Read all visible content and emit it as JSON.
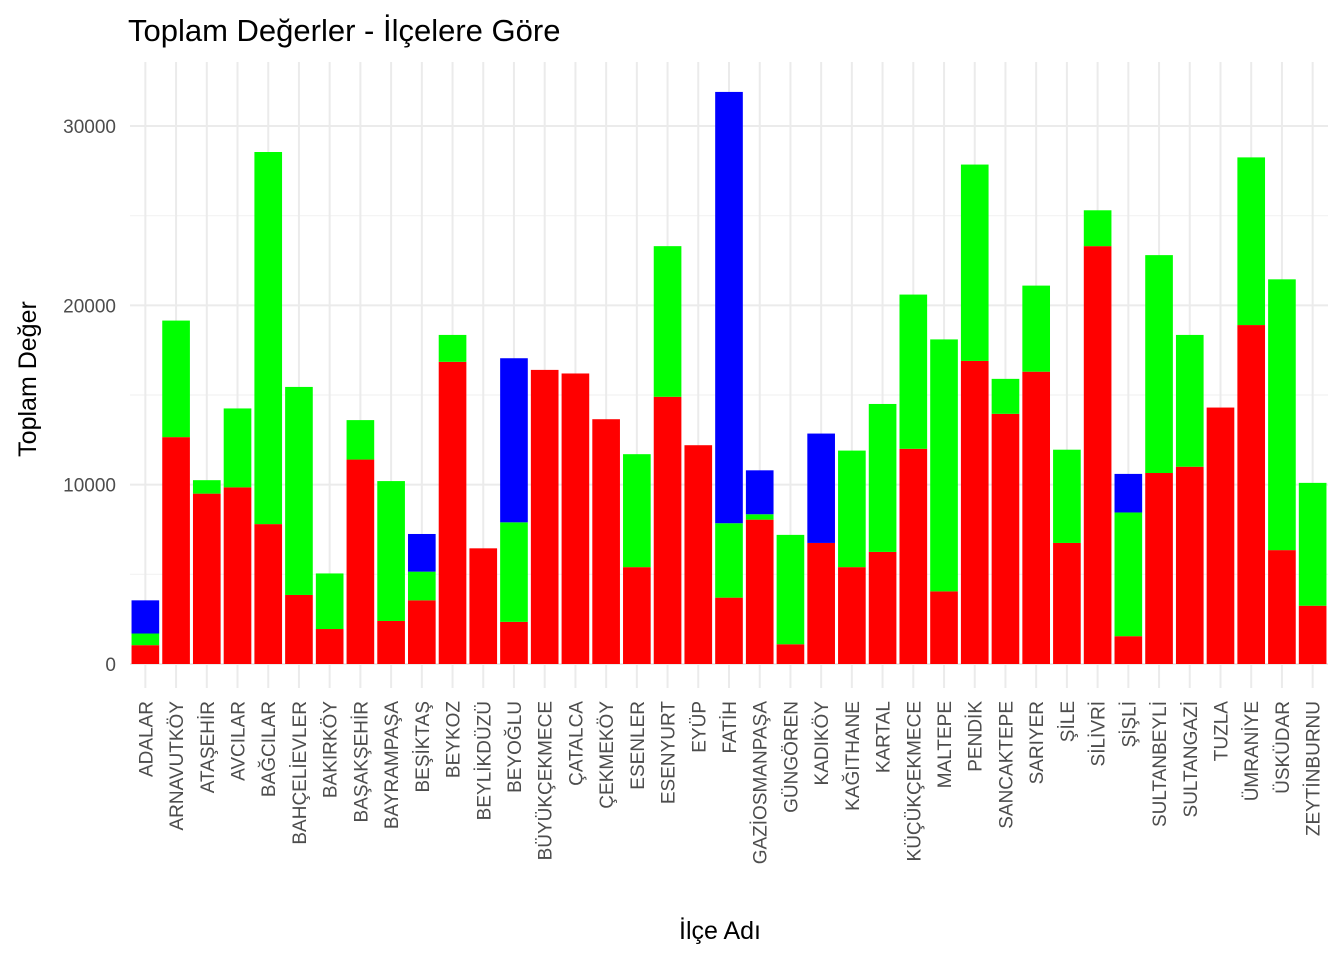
{
  "chart_data": {
    "type": "bar",
    "stacked": true,
    "title": "Toplam Değerler - İlçelere Göre",
    "xlabel": "İlçe Adı",
    "ylabel": "Toplam Değer",
    "ylim": [
      -1300,
      33000
    ],
    "yticks": [
      0,
      10000,
      20000,
      30000
    ],
    "grid": true,
    "legend": "none",
    "categories": [
      "ADALAR",
      "ARNAVUTKÖY",
      "ATAŞEHİR",
      "AVCILAR",
      "BAĞCILAR",
      "BAHÇELİEVLER",
      "BAKIRKÖY",
      "BAŞAKŞEHİR",
      "BAYRAMPAŞA",
      "BEŞİKTAŞ",
      "BEYKOZ",
      "BEYLİKDÜZÜ",
      "BEYOĞLU",
      "BÜYÜKÇEKMECE",
      "ÇATALCA",
      "ÇEKMEKÖY",
      "ESENLER",
      "ESENYURT",
      "EYÜP",
      "FATİH",
      "GAZİOSMANPAŞA",
      "GÜNGÖREN",
      "KADIKÖY",
      "KAĞITHANE",
      "KARTAL",
      "KÜÇÜKÇEKMECE",
      "MALTEPE",
      "PENDİK",
      "SANCAKTEPE",
      "SARIYER",
      "ŞİLE",
      "SİLİVRİ",
      "ŞİŞLİ",
      "SULTANBEYLİ",
      "SULTANGAZİ",
      "TUZLA",
      "ÜMRANİYE",
      "ÜSKÜDAR",
      "ZEYTİNBURNU"
    ],
    "series": [
      {
        "color": "#ff0000",
        "values": [
          1050,
          12650,
          9500,
          9850,
          7800,
          3850,
          1950,
          11400,
          2400,
          3550,
          16850,
          6450,
          2350,
          16400,
          16200,
          13650,
          5400,
          14900,
          12200,
          3700,
          8050,
          1100,
          6750,
          5400,
          6250,
          12000,
          4050,
          16900,
          13950,
          16300,
          6750,
          23300,
          1550,
          10650,
          11000,
          14300,
          18900,
          6350,
          3250
        ]
      },
      {
        "color": "#00ff00",
        "values": [
          650,
          6500,
          750,
          4400,
          20750,
          11600,
          3100,
          2200,
          7800,
          1600,
          1500,
          0,
          5550,
          0,
          0,
          0,
          6300,
          8400,
          0,
          4150,
          300,
          6100,
          0,
          6500,
          8250,
          8600,
          14050,
          10950,
          1950,
          4800,
          5200,
          2000,
          6900,
          12150,
          7350,
          0,
          9350,
          15100,
          6850
        ]
      },
      {
        "color": "#0000ff",
        "values": [
          1850,
          0,
          0,
          0,
          0,
          0,
          0,
          0,
          0,
          2100,
          0,
          0,
          9150,
          0,
          0,
          0,
          0,
          0,
          0,
          24050,
          2450,
          0,
          6100,
          0,
          0,
          0,
          0,
          0,
          0,
          0,
          0,
          0,
          2150,
          0,
          0,
          0,
          0,
          0,
          0
        ]
      }
    ]
  }
}
